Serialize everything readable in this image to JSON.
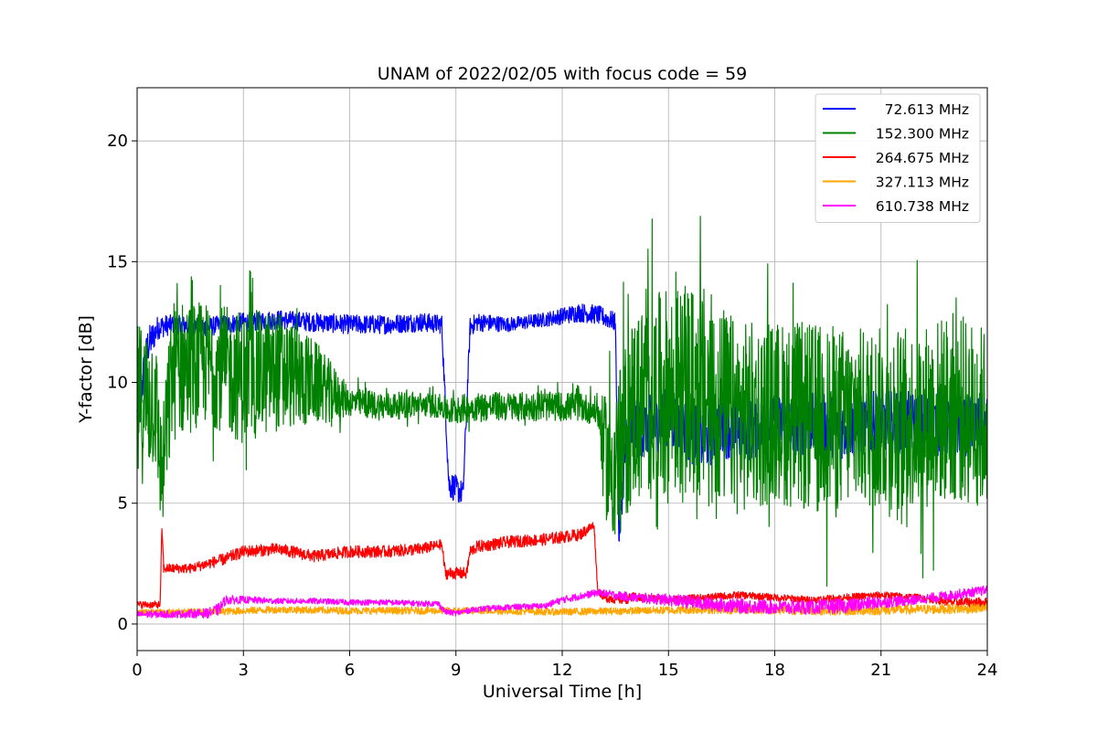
{
  "chart_data": {
    "type": "line",
    "title": "UNAM of 2022/02/05 with focus code = 59",
    "xlabel": "Universal Time [h]",
    "ylabel": "Y-factor [dB]",
    "xlim": [
      0,
      24
    ],
    "ylim": [
      -1.1,
      22.2
    ],
    "xticks": [
      0,
      3,
      6,
      9,
      12,
      15,
      18,
      21,
      24
    ],
    "yticks": [
      0,
      5,
      10,
      15,
      20
    ],
    "grid": true,
    "legend_position": "top-right",
    "series": [
      {
        "name": "72.613 MHz",
        "color": "#0000ff",
        "x": [
          0.0,
          0.3,
          0.6,
          1.0,
          2.0,
          3.0,
          4.0,
          5.0,
          6.0,
          7.0,
          8.0,
          8.6,
          8.8,
          9.2,
          9.4,
          9.6,
          10.5,
          11.5,
          12.5,
          13.0,
          13.5,
          13.6,
          13.8,
          14.0,
          15.0,
          16.0,
          16.5,
          17.0,
          18.0,
          19.0,
          20.0,
          21.0,
          22.0,
          23.0,
          24.0
        ],
        "y": [
          8.5,
          11.5,
          12.3,
          12.4,
          12.3,
          12.5,
          12.6,
          12.5,
          12.4,
          12.4,
          12.5,
          12.4,
          5.8,
          5.4,
          12.3,
          12.5,
          12.4,
          12.6,
          12.9,
          12.8,
          12.5,
          3.5,
          7.5,
          8.0,
          8.5,
          7.6,
          8.2,
          8.0,
          8.2,
          8.3,
          8.1,
          8.4,
          8.3,
          8.2,
          8.3
        ],
        "amp": [
          1.2,
          0.8,
          0.5,
          0.4,
          0.4,
          0.4,
          0.4,
          0.4,
          0.4,
          0.4,
          0.4,
          0.4,
          0.6,
          0.5,
          0.4,
          0.4,
          0.3,
          0.3,
          0.4,
          0.4,
          0.4,
          0.4,
          1.2,
          1.2,
          1.3,
          1.3,
          1.3,
          1.3,
          1.3,
          1.3,
          1.3,
          1.3,
          1.3,
          1.3,
          1.3
        ]
      },
      {
        "name": "152.300 MHz",
        "color": "#008000",
        "x": [
          0.0,
          0.5,
          0.7,
          1.0,
          2.0,
          3.0,
          4.0,
          5.0,
          6.0,
          7.0,
          8.0,
          8.6,
          8.8,
          9.5,
          10.5,
          11.5,
          12.5,
          13.0,
          13.3,
          13.6,
          14.0,
          15.0,
          16.0,
          17.0,
          18.0,
          19.0,
          20.0,
          21.0,
          22.0,
          23.0,
          24.0
        ],
        "y": [
          9.0,
          9.5,
          6.0,
          10.5,
          10.8,
          10.2,
          10.5,
          10.0,
          9.2,
          9.0,
          9.1,
          9.0,
          8.8,
          9.0,
          9.0,
          9.0,
          9.0,
          8.8,
          6.5,
          7.0,
          9.0,
          9.5,
          9.5,
          8.5,
          8.8,
          8.5,
          8.5,
          8.5,
          8.5,
          9.0,
          8.5
        ],
        "amp": [
          3.5,
          3.0,
          2.5,
          3.0,
          2.5,
          2.8,
          2.5,
          1.8,
          0.6,
          0.6,
          0.5,
          0.5,
          0.6,
          0.6,
          0.6,
          0.6,
          0.6,
          0.6,
          3.0,
          3.5,
          4.0,
          4.5,
          4.5,
          4.0,
          3.8,
          4.0,
          3.8,
          3.8,
          3.8,
          4.0,
          3.8
        ]
      },
      {
        "name": "264.675 MHz",
        "color": "#ff0000",
        "x": [
          0.0,
          0.65,
          0.7,
          0.75,
          1.5,
          2.5,
          3.0,
          4.0,
          5.0,
          6.0,
          7.0,
          8.0,
          8.6,
          8.7,
          9.3,
          9.4,
          9.6,
          10.5,
          11.5,
          12.5,
          12.9,
          13.0,
          13.2,
          13.7,
          14.0,
          15.0,
          16.0,
          17.0,
          18.0,
          19.0,
          20.0,
          21.0,
          22.0,
          22.5,
          23.0,
          24.0
        ],
        "y": [
          0.8,
          0.8,
          4.0,
          2.3,
          2.3,
          2.7,
          3.0,
          3.1,
          2.8,
          3.0,
          3.0,
          3.1,
          3.3,
          2.1,
          2.1,
          3.0,
          3.2,
          3.4,
          3.5,
          3.7,
          4.1,
          1.4,
          1.1,
          1.0,
          1.1,
          1.0,
          1.1,
          1.2,
          1.1,
          1.0,
          1.1,
          1.2,
          1.1,
          1.0,
          0.9,
          0.9
        ],
        "amp": [
          0.15,
          0.15,
          0.1,
          0.2,
          0.2,
          0.25,
          0.25,
          0.25,
          0.25,
          0.25,
          0.25,
          0.25,
          0.2,
          0.25,
          0.25,
          0.25,
          0.25,
          0.25,
          0.25,
          0.25,
          0.2,
          0.15,
          0.2,
          0.2,
          0.2,
          0.15,
          0.15,
          0.15,
          0.15,
          0.15,
          0.15,
          0.15,
          0.15,
          0.15,
          0.2,
          0.2
        ]
      },
      {
        "name": "327.113 MHz",
        "color": "#ffa500",
        "x": [
          0.0,
          2.0,
          4.0,
          6.0,
          8.0,
          10.0,
          12.0,
          14.0,
          16.0,
          18.0,
          20.0,
          22.0,
          24.0
        ],
        "y": [
          0.5,
          0.5,
          0.6,
          0.55,
          0.55,
          0.55,
          0.5,
          0.55,
          0.6,
          0.6,
          0.55,
          0.6,
          0.65
        ],
        "amp": [
          0.12,
          0.15,
          0.15,
          0.15,
          0.15,
          0.15,
          0.15,
          0.15,
          0.18,
          0.2,
          0.2,
          0.2,
          0.2
        ]
      },
      {
        "name": "610.738 MHz",
        "color": "#ff00ff",
        "x": [
          0.0,
          1.0,
          2.0,
          2.3,
          2.5,
          3.0,
          4.0,
          5.0,
          6.0,
          7.0,
          8.0,
          8.5,
          8.7,
          9.0,
          9.5,
          10.5,
          11.5,
          12.0,
          13.0,
          14.0,
          15.0,
          16.0,
          17.0,
          18.0,
          19.0,
          20.0,
          21.0,
          22.0,
          23.0,
          24.0
        ],
        "y": [
          0.4,
          0.4,
          0.45,
          0.6,
          1.0,
          1.0,
          0.95,
          0.95,
          0.9,
          0.9,
          0.85,
          0.85,
          0.5,
          0.45,
          0.6,
          0.7,
          0.75,
          1.0,
          1.3,
          1.1,
          1.0,
          0.85,
          0.75,
          0.7,
          0.7,
          0.75,
          0.9,
          1.0,
          1.2,
          1.4
        ],
        "amp": [
          0.15,
          0.15,
          0.2,
          0.25,
          0.2,
          0.15,
          0.12,
          0.12,
          0.12,
          0.12,
          0.12,
          0.12,
          0.12,
          0.12,
          0.12,
          0.12,
          0.12,
          0.15,
          0.15,
          0.2,
          0.25,
          0.3,
          0.3,
          0.3,
          0.3,
          0.3,
          0.25,
          0.2,
          0.2,
          0.2
        ]
      }
    ]
  }
}
